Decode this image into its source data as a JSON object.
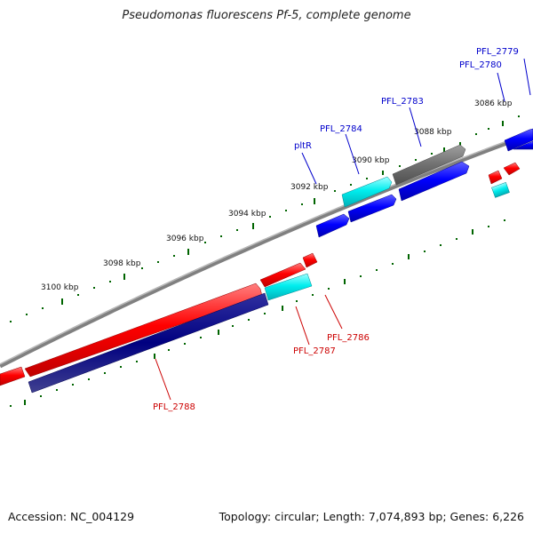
{
  "title": "Pseudomonas fluorescens Pf-5, complete genome",
  "footer": {
    "accession": "Accession: NC_004129",
    "summary": "Topology: circular; Length: 7,074,893 bp; Genes: 6,226"
  },
  "scale_labels": [
    "3086 kbp",
    "3088 kbp",
    "3090 kbp",
    "3092 kbp",
    "3094 kbp",
    "3096 kbp",
    "3098 kbp",
    "3100 kbp"
  ],
  "genes": [
    {
      "name": "PFL_2779",
      "color": "#0000cc"
    },
    {
      "name": "PFL_2780",
      "color": "#0000cc"
    },
    {
      "name": "PFL_2783",
      "color": "#0000cc"
    },
    {
      "name": "PFL_2784",
      "color": "#0000cc"
    },
    {
      "name": "pltR",
      "color": "#0000cc"
    },
    {
      "name": "PFL_2786",
      "color": "#cc0000"
    },
    {
      "name": "PFL_2787",
      "color": "#cc0000"
    },
    {
      "name": "PFL_2788",
      "color": "#cc0000"
    }
  ],
  "colors": {
    "forward_strand": "#0000ff",
    "reverse_strand": "#ff0000",
    "rna": "#00e5ee",
    "dark_gene": "#000080",
    "pseudo_gene": "#707070",
    "backbone": "#808080",
    "tick": "#006400"
  }
}
